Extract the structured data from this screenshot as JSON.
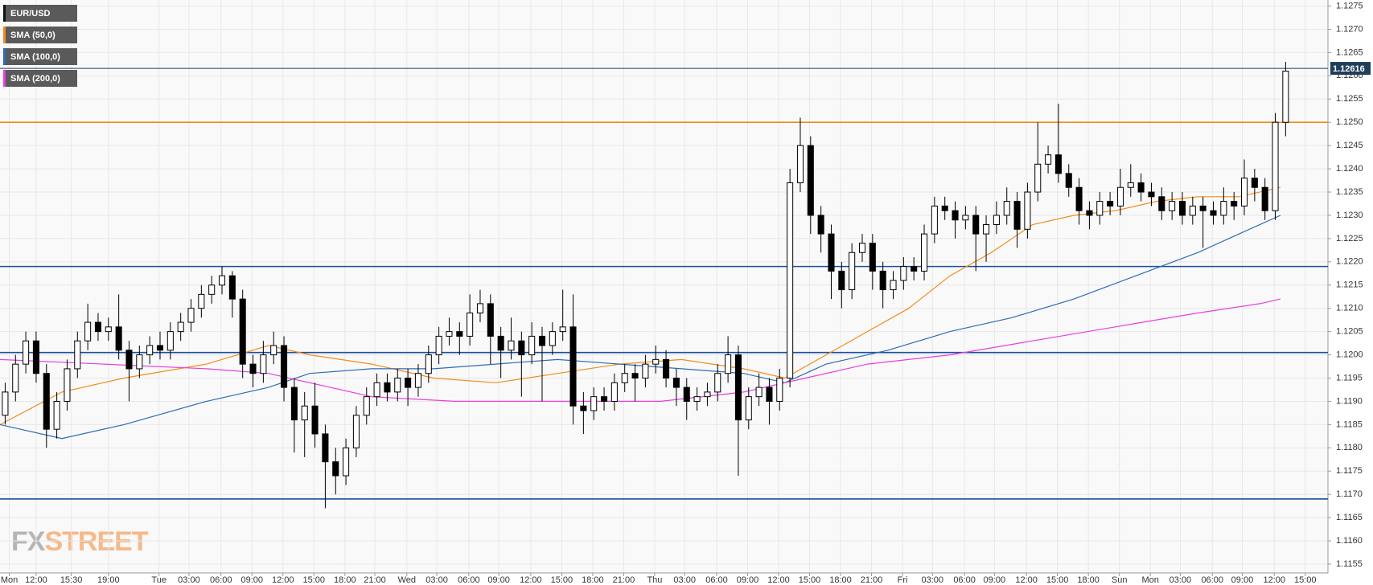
{
  "chart_data": {
    "type": "candlestick",
    "name": "EUR/USD",
    "color": "#000000",
    "up_color": "#ffffff",
    "x": [
      0.5,
      1.5,
      2.5,
      3.5,
      4.5,
      5.5,
      6.5,
      7.5,
      8.5,
      9.5,
      10.5,
      11.5,
      12.5,
      13.5,
      14.5,
      15.5,
      16.5,
      17.5,
      18.5,
      19.5,
      20.5,
      21.5,
      22.5,
      23.5,
      24.5,
      25.5,
      26.5,
      27.5,
      28.5,
      29.5,
      30.5,
      31.5,
      32.5,
      33.5,
      34.5,
      35.5,
      36.5,
      37.5,
      38.5,
      39.5,
      40.5,
      41.5,
      42.5,
      43.5,
      44.5,
      45.5,
      46.5,
      47.5,
      48.5,
      49.5,
      50.5,
      51.5,
      52.5,
      53.5,
      54.5,
      55.5,
      56.5,
      57.5,
      58.5,
      59.5,
      60.5,
      61.5,
      62.5,
      63.5,
      64.5,
      65.5,
      66.5,
      67.5,
      68.5,
      69.5,
      70.5,
      71.5,
      72.5,
      73.5,
      74.5,
      75.5,
      76.5,
      77.5,
      78.5,
      79.5,
      80.5,
      81.5,
      82.5,
      83.5,
      84.5,
      85.5,
      86.5,
      87.5,
      88.5,
      89.5,
      90.5,
      91.5,
      92.5,
      93.5,
      94.5,
      95.5,
      96.5,
      97.5,
      98.5,
      99.5,
      100.5,
      101.5,
      102.5,
      103.5,
      104.5,
      105.5,
      106.5,
      107.5,
      108.5,
      109.5,
      110.5,
      111.5,
      112.5,
      113.5,
      114.5,
      115.5,
      116.5,
      117.5,
      118.5,
      119.5,
      120.5,
      121.5,
      122.5,
      123.5,
      124.5
    ],
    "ohlc": [
      [
        1.1187,
        1.1194,
        1.1185,
        1.1192
      ],
      [
        1.1192,
        1.12,
        1.119,
        1.1198
      ],
      [
        1.1198,
        1.1205,
        1.1196,
        1.1203
      ],
      [
        1.1203,
        1.1205,
        1.1194,
        1.1196
      ],
      [
        1.1196,
        1.1198,
        1.118,
        1.1184
      ],
      [
        1.1184,
        1.1192,
        1.1182,
        1.119
      ],
      [
        1.119,
        1.1199,
        1.1188,
        1.1197
      ],
      [
        1.1197,
        1.1205,
        1.1195,
        1.1203
      ],
      [
        1.1203,
        1.1211,
        1.1201,
        1.1207
      ],
      [
        1.1207,
        1.1209,
        1.1203,
        1.1205
      ],
      [
        1.1205,
        1.1208,
        1.1203,
        1.1206
      ],
      [
        1.1206,
        1.1213,
        1.1199,
        1.1201
      ],
      [
        1.1201,
        1.1203,
        1.119,
        1.1197
      ],
      [
        1.1197,
        1.1202,
        1.1195,
        1.12
      ],
      [
        1.12,
        1.1204,
        1.1198,
        1.1202
      ],
      [
        1.1202,
        1.1205,
        1.1199,
        1.1201
      ],
      [
        1.1201,
        1.1207,
        1.1199,
        1.1205
      ],
      [
        1.1205,
        1.1209,
        1.1203,
        1.1207
      ],
      [
        1.1207,
        1.1212,
        1.1205,
        1.121
      ],
      [
        1.121,
        1.1215,
        1.1208,
        1.1213
      ],
      [
        1.1213,
        1.1217,
        1.1211,
        1.1215
      ],
      [
        1.1215,
        1.1219,
        1.1213,
        1.1217
      ],
      [
        1.1217,
        1.1218,
        1.1208,
        1.1212
      ],
      [
        1.1212,
        1.1214,
        1.1195,
        1.1198
      ],
      [
        1.1198,
        1.12,
        1.1193,
        1.1196
      ],
      [
        1.1196,
        1.1203,
        1.1194,
        1.12
      ],
      [
        1.12,
        1.1205,
        1.1198,
        1.1202
      ],
      [
        1.1202,
        1.1204,
        1.119,
        1.1193
      ],
      [
        1.1193,
        1.1195,
        1.1179,
        1.1186
      ],
      [
        1.1186,
        1.1192,
        1.1178,
        1.1189
      ],
      [
        1.1189,
        1.1194,
        1.118,
        1.1183
      ],
      [
        1.1183,
        1.1185,
        1.1167,
        1.1177
      ],
      [
        1.1177,
        1.118,
        1.117,
        1.1174
      ],
      [
        1.1174,
        1.1182,
        1.1172,
        1.118
      ],
      [
        1.118,
        1.1189,
        1.1178,
        1.1187
      ],
      [
        1.1187,
        1.1193,
        1.1185,
        1.1191
      ],
      [
        1.1191,
        1.1196,
        1.1189,
        1.1194
      ],
      [
        1.1194,
        1.1196,
        1.119,
        1.1192
      ],
      [
        1.1192,
        1.1197,
        1.119,
        1.1195
      ],
      [
        1.1195,
        1.1197,
        1.1189,
        1.1193
      ],
      [
        1.1193,
        1.1198,
        1.1191,
        1.1196
      ],
      [
        1.1196,
        1.1202,
        1.1194,
        1.12
      ],
      [
        1.12,
        1.1206,
        1.1198,
        1.1204
      ],
      [
        1.1204,
        1.1208,
        1.1202,
        1.1205
      ],
      [
        1.1205,
        1.1207,
        1.12,
        1.1204
      ],
      [
        1.1204,
        1.1213,
        1.1202,
        1.1209
      ],
      [
        1.1209,
        1.1214,
        1.1207,
        1.1211
      ],
      [
        1.1211,
        1.1213,
        1.1198,
        1.1204
      ],
      [
        1.1204,
        1.1206,
        1.1195,
        1.1201
      ],
      [
        1.1201,
        1.1208,
        1.1199,
        1.1203
      ],
      [
        1.1203,
        1.1205,
        1.1191,
        1.12
      ],
      [
        1.12,
        1.1207,
        1.1198,
        1.1204
      ],
      [
        1.1204,
        1.1206,
        1.119,
        1.1202
      ],
      [
        1.1202,
        1.1207,
        1.12,
        1.1205
      ],
      [
        1.1205,
        1.1214,
        1.1203,
        1.1206
      ],
      [
        1.1206,
        1.1213,
        1.1185,
        1.1189
      ],
      [
        1.1189,
        1.1192,
        1.1183,
        1.1188
      ],
      [
        1.1188,
        1.1193,
        1.1186,
        1.1191
      ],
      [
        1.1191,
        1.1193,
        1.1188,
        1.119
      ],
      [
        1.119,
        1.1196,
        1.1188,
        1.1194
      ],
      [
        1.1194,
        1.1198,
        1.1192,
        1.1196
      ],
      [
        1.1196,
        1.1198,
        1.119,
        1.1195
      ],
      [
        1.1195,
        1.12,
        1.1193,
        1.1198
      ],
      [
        1.1198,
        1.1202,
        1.1196,
        1.1199
      ],
      [
        1.1199,
        1.1201,
        1.1193,
        1.1195
      ],
      [
        1.1195,
        1.1197,
        1.1189,
        1.1193
      ],
      [
        1.1193,
        1.1195,
        1.1186,
        1.119
      ],
      [
        1.119,
        1.1193,
        1.1188,
        1.1191
      ],
      [
        1.1191,
        1.1194,
        1.1189,
        1.1192
      ],
      [
        1.1192,
        1.1198,
        1.119,
        1.1196
      ],
      [
        1.1196,
        1.1204,
        1.1194,
        1.12
      ],
      [
        1.12,
        1.1202,
        1.1174,
        1.1186
      ],
      [
        1.1186,
        1.1193,
        1.1184,
        1.1191
      ],
      [
        1.1191,
        1.1196,
        1.1189,
        1.1193
      ],
      [
        1.1193,
        1.1195,
        1.1185,
        1.119
      ],
      [
        1.119,
        1.1197,
        1.1188,
        1.1195
      ],
      [
        1.1195,
        1.124,
        1.1193,
        1.1237
      ],
      [
        1.1237,
        1.1251,
        1.1235,
        1.1245
      ],
      [
        1.1245,
        1.1247,
        1.1226,
        1.123
      ],
      [
        1.123,
        1.1232,
        1.1222,
        1.1226
      ],
      [
        1.1226,
        1.1228,
        1.1212,
        1.1218
      ],
      [
        1.1218,
        1.122,
        1.121,
        1.1214
      ],
      [
        1.1214,
        1.1224,
        1.1212,
        1.1222
      ],
      [
        1.1222,
        1.1226,
        1.122,
        1.1224
      ],
      [
        1.1224,
        1.1226,
        1.1214,
        1.1218
      ],
      [
        1.1218,
        1.122,
        1.121,
        1.1214
      ],
      [
        1.1214,
        1.1218,
        1.1212,
        1.1216
      ],
      [
        1.1216,
        1.1221,
        1.1214,
        1.1219
      ],
      [
        1.1219,
        1.1221,
        1.1216,
        1.1218
      ],
      [
        1.1218,
        1.1228,
        1.1216,
        1.1226
      ],
      [
        1.1226,
        1.1234,
        1.1224,
        1.1232
      ],
      [
        1.1232,
        1.1234,
        1.1229,
        1.1231
      ],
      [
        1.1231,
        1.1233,
        1.1225,
        1.1229
      ],
      [
        1.1229,
        1.1232,
        1.1227,
        1.123
      ],
      [
        1.123,
        1.1232,
        1.1218,
        1.1226
      ],
      [
        1.1226,
        1.123,
        1.122,
        1.1228
      ],
      [
        1.1228,
        1.1233,
        1.1226,
        1.123
      ],
      [
        1.123,
        1.1236,
        1.1228,
        1.1233
      ],
      [
        1.1233,
        1.1235,
        1.1223,
        1.1227
      ],
      [
        1.1227,
        1.1237,
        1.1225,
        1.1235
      ],
      [
        1.1235,
        1.125,
        1.1233,
        1.1241
      ],
      [
        1.1241,
        1.1245,
        1.1239,
        1.1243
      ],
      [
        1.1243,
        1.1254,
        1.1237,
        1.1239
      ],
      [
        1.1239,
        1.1241,
        1.1234,
        1.1236
      ],
      [
        1.1236,
        1.1238,
        1.1228,
        1.1231
      ],
      [
        1.1231,
        1.1233,
        1.1227,
        1.123
      ],
      [
        1.123,
        1.1235,
        1.1228,
        1.1233
      ],
      [
        1.1233,
        1.1235,
        1.123,
        1.1232
      ],
      [
        1.1232,
        1.124,
        1.123,
        1.1236
      ],
      [
        1.1236,
        1.1241,
        1.1234,
        1.1237
      ],
      [
        1.1237,
        1.1239,
        1.1233,
        1.1235
      ],
      [
        1.1235,
        1.1237,
        1.1232,
        1.1234
      ],
      [
        1.1234,
        1.1236,
        1.1229,
        1.1231
      ],
      [
        1.1231,
        1.1235,
        1.1229,
        1.1233
      ],
      [
        1.1233,
        1.1235,
        1.1228,
        1.123
      ],
      [
        1.123,
        1.1234,
        1.1228,
        1.1232
      ],
      [
        1.1232,
        1.1234,
        1.1223,
        1.1231
      ],
      [
        1.1231,
        1.1233,
        1.1228,
        1.123
      ],
      [
        1.123,
        1.1236,
        1.1228,
        1.1233
      ],
      [
        1.1233,
        1.1235,
        1.1229,
        1.1232
      ],
      [
        1.1232,
        1.1242,
        1.123,
        1.1238
      ],
      [
        1.1238,
        1.124,
        1.1233,
        1.1236
      ],
      [
        1.1236,
        1.1238,
        1.1229,
        1.1231
      ],
      [
        1.1231,
        1.1252,
        1.1229,
        1.125
      ],
      [
        1.125,
        1.1263,
        1.1247,
        1.1261
      ]
    ],
    "overlays": [
      {
        "name": "SMA (50,0)",
        "color": "#f28c1b",
        "x": [
          0,
          6,
          12,
          20,
          26,
          30,
          36,
          42,
          48,
          54,
          60,
          66,
          72,
          76,
          80,
          84,
          88,
          92,
          96,
          100,
          104,
          108,
          112,
          116,
          120,
          124
        ],
        "values": [
          1.1185,
          1.1192,
          1.1195,
          1.1198,
          1.1202,
          1.12,
          1.1198,
          1.1195,
          1.1194,
          1.1196,
          1.1198,
          1.1199,
          1.1197,
          1.1195,
          1.12,
          1.1205,
          1.121,
          1.1217,
          1.1222,
          1.1228,
          1.123,
          1.1231,
          1.1233,
          1.1234,
          1.1234,
          1.1236
        ]
      },
      {
        "name": "SMA (100,0)",
        "color": "#2e6bb5",
        "x": [
          0,
          6,
          12,
          20,
          26,
          30,
          36,
          42,
          48,
          54,
          60,
          66,
          72,
          76,
          80,
          86,
          92,
          98,
          104,
          110,
          116,
          120,
          124
        ],
        "values": [
          1.1185,
          1.1182,
          1.1185,
          1.119,
          1.1193,
          1.1196,
          1.1197,
          1.1197,
          1.1198,
          1.1199,
          1.1198,
          1.1197,
          1.1196,
          1.1194,
          1.1198,
          1.1201,
          1.1205,
          1.1208,
          1.1212,
          1.1217,
          1.1222,
          1.1226,
          1.123
        ]
      },
      {
        "name": "SMA (200,0)",
        "color": "#e83ee0",
        "x": [
          0,
          10,
          20,
          26,
          36,
          44,
          56,
          64,
          72,
          78,
          84,
          92,
          100,
          108,
          116,
          122,
          124
        ],
        "values": [
          1.1199,
          1.1198,
          1.1197,
          1.1196,
          1.1191,
          1.119,
          1.119,
          1.119,
          1.1192,
          1.1195,
          1.1198,
          1.12,
          1.1203,
          1.1206,
          1.1209,
          1.1211,
          1.1212
        ]
      }
    ],
    "hlines": [
      {
        "value": 1.12616,
        "color": "#1f3d5c"
      },
      {
        "value": 1.125,
        "color": "#f28c1b"
      },
      {
        "value": 1.1219,
        "color": "#1a4fa0"
      },
      {
        "value": 1.12005,
        "color": "#1a4fa0"
      },
      {
        "value": 1.1169,
        "color": "#1a4fa0"
      }
    ],
    "last_price": 1.12616,
    "xlim": [
      0,
      128.6
    ],
    "ylim": [
      1.11531,
      1.12763
    ],
    "grid": true,
    "xticks": [
      {
        "value": 0.9,
        "label": "Mon"
      },
      {
        "value": 3.5,
        "label": "12:00"
      },
      {
        "value": 6.9,
        "label": "15:30"
      },
      {
        "value": 10.5,
        "label": "19:00"
      },
      {
        "value": 15.4,
        "label": "Tue"
      },
      {
        "value": 18.3,
        "label": "03:00"
      },
      {
        "value": 21.4,
        "label": "06:00"
      },
      {
        "value": 24.4,
        "label": "09:00"
      },
      {
        "value": 27.4,
        "label": "12:00"
      },
      {
        "value": 30.4,
        "label": "15:00"
      },
      {
        "value": 33.4,
        "label": "18:00"
      },
      {
        "value": 36.3,
        "label": "21:00"
      },
      {
        "value": 39.4,
        "label": "Wed"
      },
      {
        "value": 42.3,
        "label": "03:00"
      },
      {
        "value": 45.4,
        "label": "06:00"
      },
      {
        "value": 48.3,
        "label": "09:00"
      },
      {
        "value": 51.4,
        "label": "12:00"
      },
      {
        "value": 54.4,
        "label": "15:00"
      },
      {
        "value": 57.4,
        "label": "18:00"
      },
      {
        "value": 60.4,
        "label": "21:00"
      },
      {
        "value": 63.4,
        "label": "Thu"
      },
      {
        "value": 66.3,
        "label": "03:00"
      },
      {
        "value": 69.4,
        "label": "06:00"
      },
      {
        "value": 72.4,
        "label": "09:00"
      },
      {
        "value": 75.4,
        "label": "12:00"
      },
      {
        "value": 78.4,
        "label": "15:00"
      },
      {
        "value": 81.4,
        "label": "18:00"
      },
      {
        "value": 84.4,
        "label": "21:00"
      },
      {
        "value": 87.4,
        "label": "Fri"
      },
      {
        "value": 90.3,
        "label": "03:00"
      },
      {
        "value": 93.4,
        "label": "06:00"
      },
      {
        "value": 96.3,
        "label": "09:00"
      },
      {
        "value": 99.4,
        "label": "12:00"
      },
      {
        "value": 102.4,
        "label": "15:00"
      },
      {
        "value": 105.4,
        "label": "18:00"
      },
      {
        "value": 108.4,
        "label": "Sun"
      },
      {
        "value": 111.4,
        "label": "Mon"
      },
      {
        "value": 114.3,
        "label": "03:00"
      },
      {
        "value": 117.4,
        "label": "06:00"
      },
      {
        "value": 120.3,
        "label": "09:00"
      },
      {
        "value": 123.4,
        "label": "12:00"
      },
      {
        "value": 126.4,
        "label": "15:00"
      }
    ],
    "yticks": [
      1.1275,
      {
        "value": 1.127,
        "label": "1.1270"
      },
      1.1265,
      {
        "value": 1.126,
        "label": "1.1260"
      },
      1.1255,
      {
        "value": 1.125,
        "label": "1.1250"
      },
      1.1245,
      {
        "value": 1.124,
        "label": "1.1240"
      },
      1.1235,
      {
        "value": 1.123,
        "label": "1.1230"
      },
      1.1225,
      {
        "value": 1.122,
        "label": "1.1220"
      },
      1.1215,
      {
        "value": 1.121,
        "label": "1.1210"
      },
      1.1205,
      {
        "value": 1.12,
        "label": "1.1200"
      },
      1.1195,
      {
        "value": 1.119,
        "label": "1.1190"
      },
      1.1185,
      {
        "value": 1.118,
        "label": "1.1180"
      },
      1.1175,
      {
        "value": 1.117,
        "label": "1.1170"
      },
      1.1165,
      {
        "value": 1.116,
        "label": "1.1160"
      },
      1.1155
    ],
    "watermark": [
      "FX",
      "STREET"
    ]
  }
}
